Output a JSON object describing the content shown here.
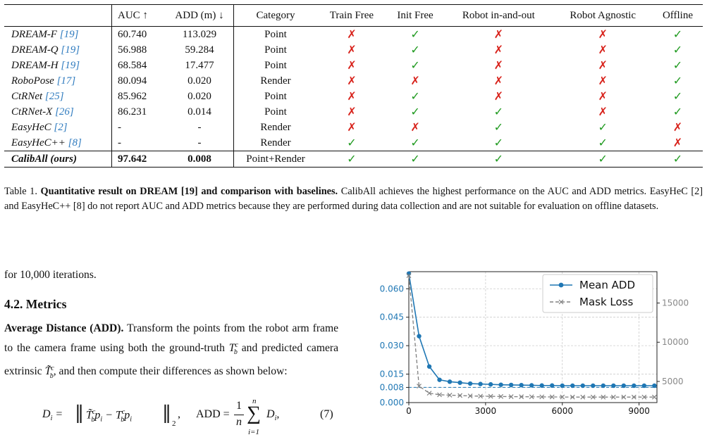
{
  "table": {
    "headers": {
      "method": "",
      "auc": "AUC ↑",
      "add": "ADD (m) ↓",
      "category": "Category",
      "train_free": "Train Free",
      "init_free": "Init Free",
      "robot_in_out": "Robot in-and-out",
      "robot_agnostic": "Robot Agnostic",
      "offline": "Offline"
    },
    "rows": [
      {
        "method": "DREAM-F",
        "ref": "[19]",
        "auc": "60.740",
        "add": "113.029",
        "category": "Point",
        "flags": [
          false,
          true,
          false,
          false,
          true
        ]
      },
      {
        "method": "DREAM-Q",
        "ref": "[19]",
        "auc": "56.988",
        "add": "59.284",
        "category": "Point",
        "flags": [
          false,
          true,
          false,
          false,
          true
        ]
      },
      {
        "method": "DREAM-H",
        "ref": "[19]",
        "auc": "68.584",
        "add": "17.477",
        "category": "Point",
        "flags": [
          false,
          true,
          false,
          false,
          true
        ]
      },
      {
        "method": "RoboPose",
        "ref": "[17]",
        "auc": "80.094",
        "add": "0.020",
        "category": "Render",
        "flags": [
          false,
          false,
          false,
          false,
          true
        ]
      },
      {
        "method": "CtRNet",
        "ref": "[25]",
        "auc": "85.962",
        "add": "0.020",
        "category": "Point",
        "flags": [
          false,
          true,
          false,
          false,
          true
        ]
      },
      {
        "method": "CtRNet-X",
        "ref": "[26]",
        "auc": "86.231",
        "add": "0.014",
        "category": "Point",
        "flags": [
          false,
          true,
          true,
          false,
          true
        ]
      },
      {
        "method": "EasyHeC",
        "ref": "[2]",
        "auc": "-",
        "add": "-",
        "category": "Render",
        "flags": [
          false,
          false,
          true,
          true,
          false
        ]
      },
      {
        "method": "EasyHeC++",
        "ref": "[8]",
        "auc": "-",
        "add": "-",
        "category": "Render",
        "flags": [
          true,
          true,
          true,
          true,
          false
        ]
      },
      {
        "method": "CalibAll (ours)",
        "ref": "",
        "auc": "97.642",
        "add": "0.008",
        "category": "Point+Render",
        "flags": [
          true,
          true,
          true,
          true,
          true
        ],
        "ours": true
      }
    ],
    "marks": {
      "yes": "✓",
      "no": "✗"
    }
  },
  "caption": {
    "label": "Table 1.",
    "bold": "Quantitative result on DREAM [19] and comparison with baselines.",
    "text": "CalibAll achieves the highest performance on the AUC and ADD metrics. EasyHeC [2] and EasyHeC++ [8] do not report AUC and ADD metrics because they are performed during data collection and are not suitable for evaluation on offline datasets."
  },
  "body": {
    "iter_line": "for 10,000 iterations.",
    "section_heading": "4.2. Metrics",
    "add_title": "Average Distance (ADD).",
    "add_text_1": "Transform the points from the robot arm frame to the camera frame using both the ground-truth",
    "add_text_2": "and predicted camera extrinsic",
    "add_text_3": ", and then compute their differences as shown below:",
    "eq_number": "(7)"
  },
  "chart_data": {
    "type": "line",
    "x_ticks": [
      "0",
      "3000",
      "6000",
      "9000"
    ],
    "y_left_ticks": [
      "0.000",
      "0.008",
      "0.015",
      "0.030",
      "0.045",
      "0.060"
    ],
    "y_right_ticks": [
      "5000",
      "10000",
      "15000"
    ],
    "xlim": [
      0,
      9700
    ],
    "ylim_left": [
      0,
      0.069
    ],
    "ylim_right": [
      2300,
      19000
    ],
    "grid": true,
    "legend_position": "top-right",
    "reference_line": 0.008,
    "series": [
      {
        "name": "Mean ADD",
        "axis": "left",
        "color": "#1f77b4",
        "marker": "circle",
        "x": [
          0,
          400,
          800,
          1200,
          1600,
          2000,
          2400,
          2800,
          3200,
          3600,
          4000,
          4400,
          4800,
          5200,
          5600,
          6000,
          6400,
          6800,
          7200,
          7600,
          8000,
          8400,
          8800,
          9200,
          9600
        ],
        "y": [
          0.068,
          0.035,
          0.019,
          0.012,
          0.011,
          0.0105,
          0.01,
          0.0098,
          0.0096,
          0.0094,
          0.0093,
          0.0092,
          0.0091,
          0.009,
          0.009,
          0.0089,
          0.0089,
          0.0089,
          0.0089,
          0.0089,
          0.0089,
          0.0089,
          0.0089,
          0.0089,
          0.0089
        ]
      },
      {
        "name": "Mask Loss",
        "axis": "right",
        "color": "#808080",
        "marker": "x",
        "x": [
          0,
          400,
          800,
          1200,
          1600,
          2000,
          2400,
          2800,
          3200,
          3600,
          4000,
          4400,
          4800,
          5200,
          5600,
          6000,
          6400,
          6800,
          7200,
          7600,
          8000,
          8400,
          8800,
          9200,
          9600
        ],
        "y": [
          18500,
          4400,
          3500,
          3300,
          3250,
          3200,
          3150,
          3120,
          3100,
          3080,
          3060,
          3050,
          3040,
          3030,
          3020,
          3010,
          3000,
          3000,
          3000,
          3000,
          3000,
          3000,
          3000,
          3000,
          3000
        ]
      }
    ]
  }
}
